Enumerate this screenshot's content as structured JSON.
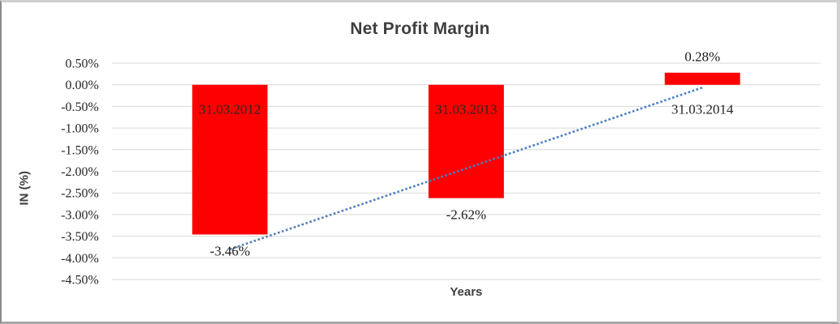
{
  "window": {
    "background": "#ffffff",
    "frame_border_color": "#a6a6a6"
  },
  "chart_data": {
    "type": "bar",
    "title": "Net Profit Margin",
    "xlabel": "Years",
    "ylabel": "IN (%)",
    "categories": [
      "31.03.2012",
      "31.03.2013",
      "31.03.2014"
    ],
    "values": [
      -3.46,
      -2.62,
      0.28
    ],
    "value_labels": [
      "-3.46%",
      "-2.62%",
      "0.28%"
    ],
    "y_ticks": [
      "0.50%",
      "0.00%",
      "-0.50%",
      "-1.00%",
      "-1.50%",
      "-2.00%",
      "-2.50%",
      "-3.00%",
      "-3.50%",
      "-4.00%",
      "-4.50%"
    ],
    "y_tick_values": [
      0.5,
      0.0,
      -0.5,
      -1.0,
      -1.5,
      -2.0,
      -2.5,
      -3.0,
      -3.5,
      -4.0,
      -4.5
    ],
    "ylim": [
      -4.5,
      0.5
    ],
    "grid_on": true,
    "legend": "none",
    "bar_color": "#ff0000",
    "grid_color": "#d9d9d9",
    "tick_label_color": "#262626",
    "category_label_color": "#262626",
    "value_label_color": "#1a1a1a",
    "title_color": "#3f3f3f",
    "trendline": {
      "type": "linear",
      "style": "dotted",
      "color": "#4a7ebf"
    }
  }
}
